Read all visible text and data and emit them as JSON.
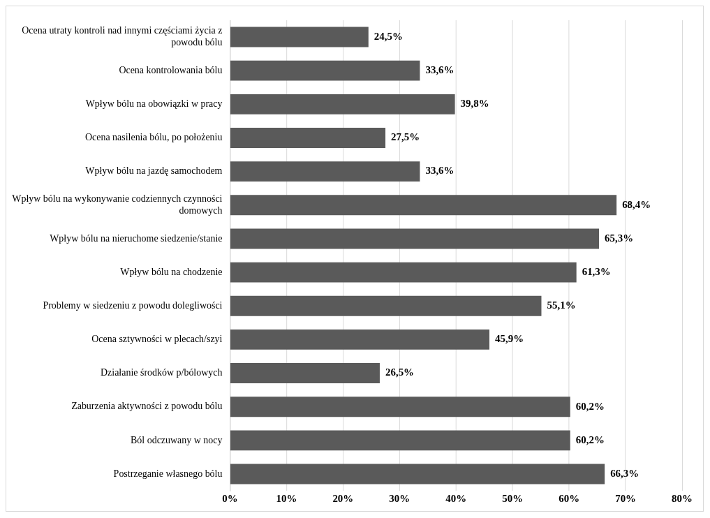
{
  "chart_data": {
    "type": "bar",
    "orientation": "horizontal",
    "categories": [
      "Ocena utraty kontroli nad innymi częściami życia z powodu bólu",
      "Ocena kontrolowania bólu",
      "Wpływ bólu na obowiązki w pracy",
      "Ocena nasilenia bólu, po położeniu",
      "Wpływ bólu na jazdę samochodem",
      "Wpływ bólu na wykonywanie codziennych czynności domowych",
      "Wpływ bólu na nieruchome siedzenie/stanie",
      "Wpływ bólu na chodzenie",
      "Problemy w siedzeniu z powodu dolegliwości",
      "Ocena sztywności w plecach/szyi",
      "Działanie środków p/bólowych",
      "Zaburzenia aktywności z powodu bólu",
      "Ból odczuwany w nocy",
      "Postrzeganie własnego bólu"
    ],
    "values": [
      24.5,
      33.6,
      39.8,
      27.5,
      33.6,
      68.4,
      65.3,
      61.3,
      55.1,
      45.9,
      26.5,
      60.2,
      60.2,
      66.3
    ],
    "value_labels": [
      "24,5%",
      "33,6%",
      "39,8%",
      "27,5%",
      "33,6%",
      "68,4%",
      "65,3%",
      "61,3%",
      "55,1%",
      "45,9%",
      "26,5%",
      "60,2%",
      "60,2%",
      "66,3%"
    ],
    "color": "#5a5a5a",
    "xlim": [
      0,
      80
    ],
    "xticks": [
      {
        "value": 0,
        "label": "0%"
      },
      {
        "value": 10,
        "label": "10%"
      },
      {
        "value": 20,
        "label": "20%"
      },
      {
        "value": 30,
        "label": "30%"
      },
      {
        "value": 40,
        "label": "40%"
      },
      {
        "value": 50,
        "label": "50%"
      },
      {
        "value": 60,
        "label": "60%"
      },
      {
        "value": 70,
        "label": "70%"
      },
      {
        "value": 80,
        "label": "80%"
      }
    ],
    "grid": "x",
    "legend": false
  }
}
